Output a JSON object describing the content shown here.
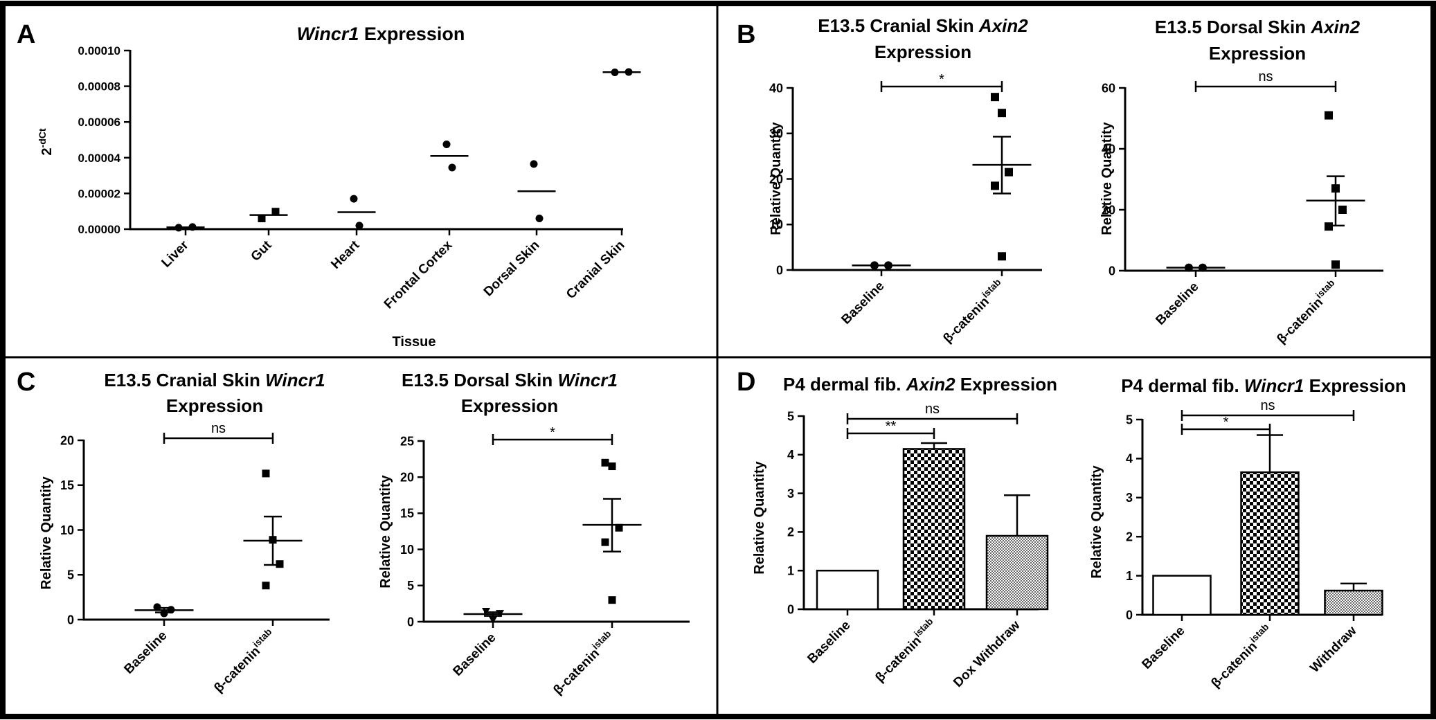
{
  "panels": [
    {
      "letter": "A"
    },
    {
      "letter": "B"
    },
    {
      "letter": "C"
    },
    {
      "letter": "D"
    }
  ],
  "colors": {
    "frame": "#000000",
    "marker": "#000000",
    "background": "#ffffff"
  },
  "chart_data": [
    {
      "id": "A",
      "type": "scatter",
      "title_parts": [
        {
          "t": "Wincr1",
          "i": true
        },
        {
          "t": " Expression",
          "i": false
        }
      ],
      "xlabel": "Tissue",
      "ylabel": "2",
      "ylabel_sup": "-dCt",
      "categories": [
        "Liver",
        "Gut",
        "Heart",
        "Frontal Cortex",
        "Dorsal Skin",
        "Cranial Skin"
      ],
      "ylim": [
        0,
        0.0001
      ],
      "yticks": [
        0,
        2e-05,
        4e-05,
        6e-05,
        8e-05,
        0.0001
      ],
      "ytick_labels": [
        "0.00000",
        "0.00002",
        "0.00004",
        "0.00006",
        "0.00008",
        "0.00010"
      ],
      "points": [
        {
          "cat": 0,
          "y": 8e-07,
          "m": "circle"
        },
        {
          "cat": 0,
          "y": 1.2e-06,
          "m": "circle"
        },
        {
          "cat": 1,
          "y": 6e-06,
          "m": "square"
        },
        {
          "cat": 1,
          "y": 9.8e-06,
          "m": "square"
        },
        {
          "cat": 2,
          "y": 1.7e-05,
          "m": "circle"
        },
        {
          "cat": 2,
          "y": 2e-06,
          "m": "circle"
        },
        {
          "cat": 3,
          "y": 4.75e-05,
          "m": "circle"
        },
        {
          "cat": 3,
          "y": 3.45e-05,
          "m": "circle"
        },
        {
          "cat": 4,
          "y": 3.65e-05,
          "m": "circle"
        },
        {
          "cat": 4,
          "y": 6e-06,
          "m": "circle"
        },
        {
          "cat": 5,
          "y": 8.78e-05,
          "m": "circle"
        },
        {
          "cat": 5,
          "y": 8.8e-05,
          "m": "circle"
        }
      ],
      "means": [
        1e-06,
        7.9e-06,
        9.5e-06,
        4.1e-05,
        2.12e-05,
        8.79e-05
      ]
    },
    {
      "id": "B1",
      "type": "scatter",
      "title_parts": [
        {
          "t": "E13.5 Cranial Skin ",
          "i": false
        },
        {
          "t": "Axin2",
          "i": true
        }
      ],
      "title_line2": "Expression",
      "ylabel": "Relative Quantity",
      "categories": [
        "Baseline",
        "β-catenin"
      ],
      "category_sups": [
        "",
        "istab"
      ],
      "ylim": [
        0,
        40
      ],
      "yticks": [
        0,
        10,
        20,
        30,
        40
      ],
      "ytick_labels": [
        "0",
        "10",
        "20",
        "30",
        "40"
      ],
      "points": [
        {
          "cat": 0,
          "y": 1.0,
          "m": "circle"
        },
        {
          "cat": 0,
          "y": 1.0,
          "m": "circle"
        },
        {
          "cat": 1,
          "y": 38.0,
          "m": "square"
        },
        {
          "cat": 1,
          "y": 34.5,
          "m": "square"
        },
        {
          "cat": 1,
          "y": 21.5,
          "m": "square"
        },
        {
          "cat": 1,
          "y": 18.5,
          "m": "square"
        },
        {
          "cat": 1,
          "y": 3.0,
          "m": "square"
        }
      ],
      "means": [
        1.0,
        23.1
      ],
      "errors": [
        null,
        [
          16.8,
          29.3
        ]
      ],
      "significance": [
        {
          "from": 0,
          "to": 1,
          "label": "*"
        }
      ]
    },
    {
      "id": "B2",
      "type": "scatter",
      "title_parts": [
        {
          "t": "E13.5 Dorsal Skin ",
          "i": false
        },
        {
          "t": "Axin2",
          "i": true
        }
      ],
      "title_line2": "Expression",
      "ylabel": "Relative Quantity",
      "categories": [
        "Baseline",
        "β-catenin"
      ],
      "category_sups": [
        "",
        "istab"
      ],
      "ylim": [
        0,
        60
      ],
      "yticks": [
        0,
        20,
        40,
        60
      ],
      "ytick_labels": [
        "0",
        "20",
        "40",
        "60"
      ],
      "points": [
        {
          "cat": 0,
          "y": 1.0,
          "m": "circle"
        },
        {
          "cat": 0,
          "y": 1.0,
          "m": "circle"
        },
        {
          "cat": 1,
          "y": 51.0,
          "m": "square"
        },
        {
          "cat": 1,
          "y": 27.0,
          "m": "square"
        },
        {
          "cat": 1,
          "y": 20.0,
          "m": "square"
        },
        {
          "cat": 1,
          "y": 14.5,
          "m": "square"
        },
        {
          "cat": 1,
          "y": 2.0,
          "m": "square"
        }
      ],
      "means": [
        1.0,
        23.0
      ],
      "errors": [
        null,
        [
          14.8,
          31.0
        ]
      ],
      "significance": [
        {
          "from": 0,
          "to": 1,
          "label": "ns"
        }
      ]
    },
    {
      "id": "C1",
      "type": "scatter",
      "title_parts": [
        {
          "t": "E13.5 Cranial Skin ",
          "i": false
        },
        {
          "t": "Wincr1",
          "i": true
        }
      ],
      "title_line2": "Expression",
      "ylabel": "Relative Quantity",
      "categories": [
        "Baseline",
        "β-catenin"
      ],
      "category_sups": [
        "",
        "istab"
      ],
      "ylim": [
        0,
        20
      ],
      "yticks": [
        0,
        5,
        10,
        15,
        20
      ],
      "ytick_labels": [
        "0",
        "5",
        "10",
        "15",
        "20"
      ],
      "points": [
        {
          "cat": 0,
          "y": 1.4,
          "m": "circle"
        },
        {
          "cat": 0,
          "y": 0.7,
          "m": "circle"
        },
        {
          "cat": 0,
          "y": 1.1,
          "m": "circle"
        },
        {
          "cat": 1,
          "y": 16.3,
          "m": "square"
        },
        {
          "cat": 1,
          "y": 8.9,
          "m": "square"
        },
        {
          "cat": 1,
          "y": 6.2,
          "m": "square"
        },
        {
          "cat": 1,
          "y": 3.8,
          "m": "square"
        }
      ],
      "means": [
        1.05,
        8.8
      ],
      "errors": [
        [
          0.8,
          1.3
        ],
        [
          6.1,
          11.5
        ]
      ],
      "significance": [
        {
          "from": 0,
          "to": 1,
          "label": "ns"
        }
      ]
    },
    {
      "id": "C2",
      "type": "scatter",
      "title_parts": [
        {
          "t": "E13.5 Dorsal Skin ",
          "i": false
        },
        {
          "t": "Wincr1",
          "i": true
        }
      ],
      "title_line2": "Expression",
      "ylabel": "Relative Quantity",
      "categories": [
        "Baseline",
        "β-catenin"
      ],
      "category_sups": [
        "",
        "istab"
      ],
      "ylim": [
        0,
        25
      ],
      "yticks": [
        0,
        5,
        10,
        15,
        20,
        25
      ],
      "ytick_labels": [
        "0",
        "5",
        "10",
        "15",
        "20",
        "25"
      ],
      "points": [
        {
          "cat": 0,
          "y": 1.5,
          "m": "triangle"
        },
        {
          "cat": 0,
          "y": 0.3,
          "m": "triangle"
        },
        {
          "cat": 0,
          "y": 1.2,
          "m": "triangle"
        },
        {
          "cat": 1,
          "y": 22.0,
          "m": "square"
        },
        {
          "cat": 1,
          "y": 21.5,
          "m": "square"
        },
        {
          "cat": 1,
          "y": 13.0,
          "m": "square"
        },
        {
          "cat": 1,
          "y": 11.0,
          "m": "square"
        },
        {
          "cat": 1,
          "y": 3.0,
          "m": "square"
        }
      ],
      "means": [
        1.05,
        13.4
      ],
      "errors": [
        [
          0.8,
          1.3
        ],
        [
          9.7,
          17.0
        ]
      ],
      "significance": [
        {
          "from": 0,
          "to": 1,
          "label": "*"
        }
      ]
    },
    {
      "id": "D1",
      "type": "bar",
      "title_parts": [
        {
          "t": "P4 dermal fib. ",
          "i": false
        },
        {
          "t": "Axin2",
          "i": true
        },
        {
          "t": " Expression",
          "i": false
        }
      ],
      "ylabel": "Relative Quantity",
      "categories": [
        "Baseline",
        "β-catenin",
        "Dox Withdraw"
      ],
      "category_sups": [
        "",
        "istab",
        ""
      ],
      "ylim": [
        0,
        5
      ],
      "yticks": [
        0,
        1,
        2,
        3,
        4,
        5
      ],
      "ytick_labels": [
        "0",
        "1",
        "2",
        "3",
        "4",
        "5"
      ],
      "values": [
        1.0,
        4.15,
        1.9
      ],
      "error_upper": [
        null,
        4.3,
        2.95
      ],
      "fills": [
        "white",
        "checker",
        "dots"
      ],
      "significance": [
        {
          "from": 0,
          "to": 1,
          "label": "**",
          "level": 0
        },
        {
          "from": 0,
          "to": 2,
          "label": "ns",
          "level": 1
        }
      ]
    },
    {
      "id": "D2",
      "type": "bar",
      "title_parts": [
        {
          "t": "P4 dermal fib. ",
          "i": false
        },
        {
          "t": "Wincr1",
          "i": true
        },
        {
          "t": " Expression",
          "i": false
        }
      ],
      "ylabel": "Relative Quantity",
      "categories": [
        "Baseline",
        "β-catenin",
        "Withdraw"
      ],
      "category_sups": [
        "",
        "istab",
        ""
      ],
      "ylim": [
        0,
        5
      ],
      "yticks": [
        0,
        1,
        2,
        3,
        4,
        5
      ],
      "ytick_labels": [
        "0",
        "1",
        "2",
        "3",
        "4",
        "5"
      ],
      "values": [
        1.0,
        3.65,
        0.62
      ],
      "error_upper": [
        null,
        4.6,
        0.8
      ],
      "fills": [
        "white",
        "checker",
        "dots"
      ],
      "significance": [
        {
          "from": 0,
          "to": 1,
          "label": "*",
          "level": 0
        },
        {
          "from": 0,
          "to": 2,
          "label": "ns",
          "level": 1
        }
      ]
    }
  ]
}
